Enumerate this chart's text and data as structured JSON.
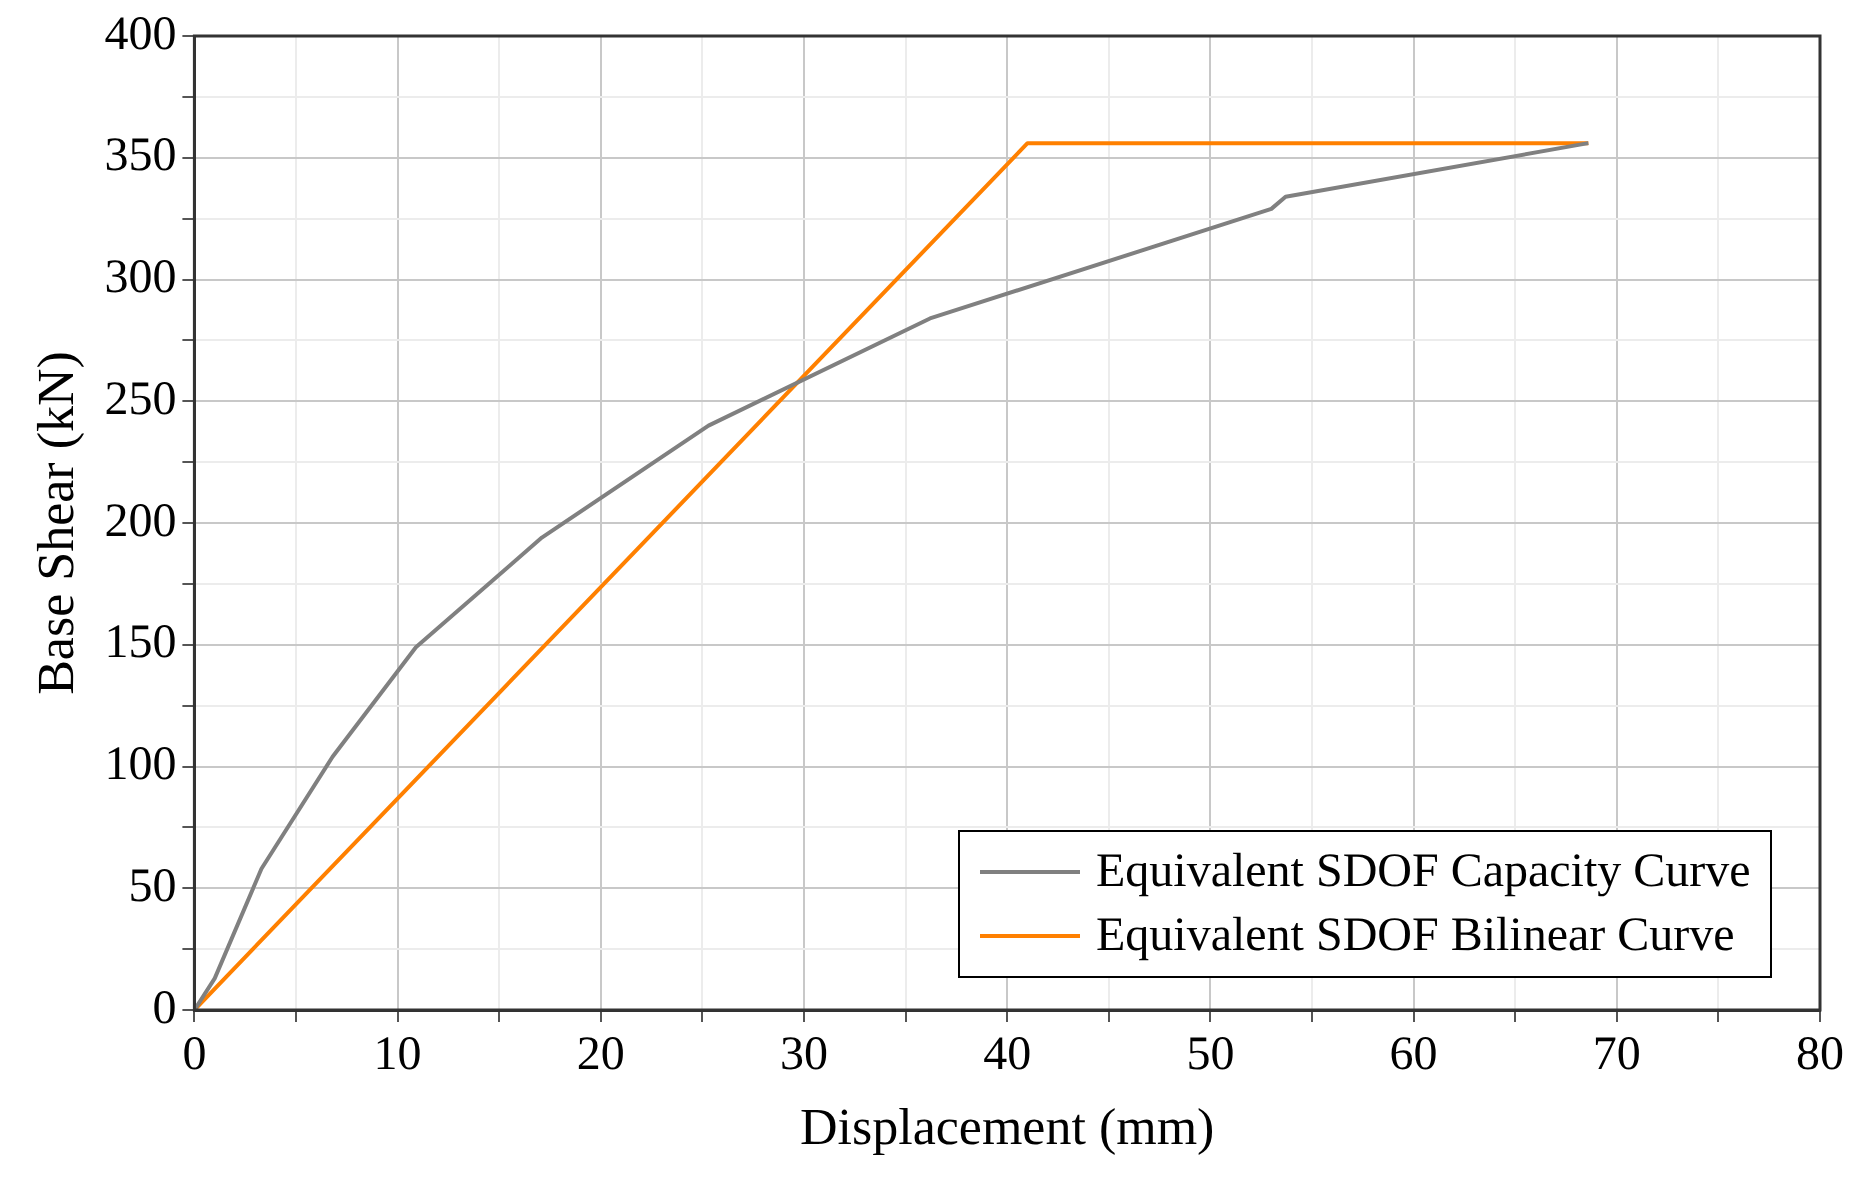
{
  "chart_data": {
    "type": "line",
    "xlabel": "Displacement (mm)",
    "ylabel": "Base Shear (kN)",
    "xlim": [
      0,
      80
    ],
    "ylim": [
      0,
      400
    ],
    "xticks": [
      0,
      {
        "value": 5,
        "label": null
      },
      10,
      {
        "value": 15,
        "label": null
      },
      20,
      {
        "value": 25,
        "label": null
      },
      30,
      {
        "value": 35,
        "label": null
      },
      40,
      {
        "value": 45,
        "label": null
      },
      50,
      {
        "value": 55,
        "label": null
      },
      60,
      {
        "value": 65,
        "label": null
      },
      70,
      {
        "value": 75,
        "label": null
      },
      80
    ],
    "yticks": [
      0,
      {
        "value": 25,
        "label": null
      },
      50,
      {
        "value": 75,
        "label": null
      },
      100,
      {
        "value": 125,
        "label": null
      },
      150,
      {
        "value": 175,
        "label": null
      },
      200,
      {
        "value": 225,
        "label": null
      },
      250,
      {
        "value": 275,
        "label": null
      },
      300,
      {
        "value": 325,
        "label": null
      },
      350,
      {
        "value": 375,
        "label": null
      },
      400
    ],
    "grid": true,
    "legend": "bottom right",
    "marker": "none",
    "line_style": "solid",
    "series": [
      {
        "name": "Equivalent SDOF Capacity Curve",
        "color": "#808080",
        "x": [
          0,
          1,
          3.3,
          6.8,
          10.9,
          17.1,
          25.3,
          36.2,
          53,
          53.7,
          68.6
        ],
        "values": [
          0,
          13,
          58,
          104,
          149,
          194,
          240,
          284,
          329,
          334,
          356
        ]
      },
      {
        "name": "Equivalent SDOF Bilinear Curve",
        "color": "#ff8000",
        "x": [
          0,
          41,
          68.6
        ],
        "values": [
          0,
          356,
          356
        ]
      }
    ]
  }
}
